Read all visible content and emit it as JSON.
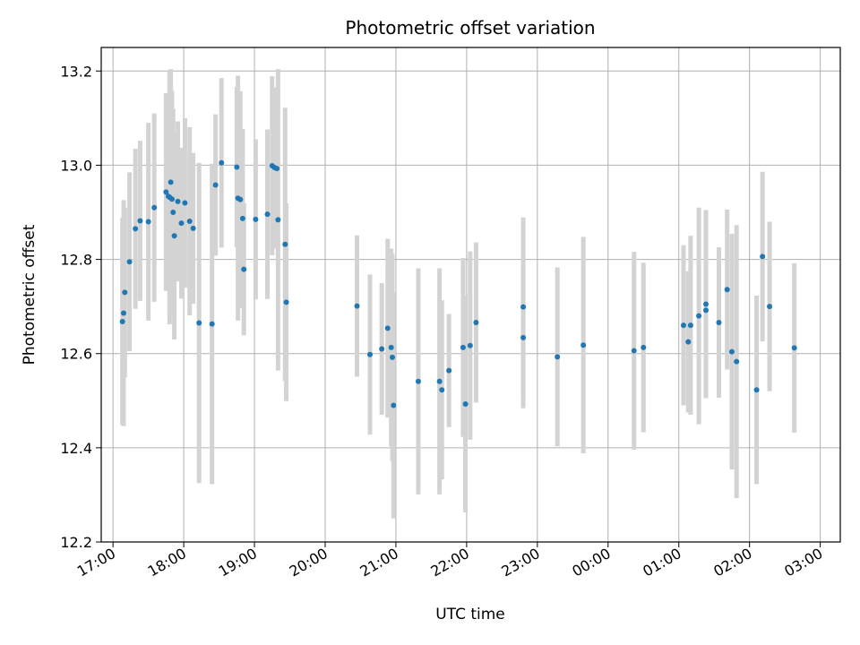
{
  "chart_data": {
    "type": "scatter",
    "title": "Photometric offset variation",
    "xlabel": "UTC time",
    "ylabel": "Photometric offset",
    "grid": true,
    "xlim": [
      "16:50",
      "03:17"
    ],
    "ylim": [
      12.2,
      13.25
    ],
    "xticks": [
      "17:00",
      "18:00",
      "19:00",
      "20:00",
      "21:00",
      "22:00",
      "23:00",
      "00:00",
      "01:00",
      "02:00",
      "03:00"
    ],
    "yticks": [
      "12.2",
      "12.4",
      "12.6",
      "12.8",
      "13.0",
      "13.2"
    ],
    "colors": {
      "marker": "#1f77b4",
      "errorbar": "#d3d3d3",
      "grid": "#b0b0b0"
    },
    "series": [
      {
        "x": [
          "17:08",
          "17:09",
          "17:10",
          "17:14",
          "17:19",
          "17:23",
          "17:30",
          "17:35",
          "17:45",
          "17:47",
          "17:48",
          "17:49",
          "17:50",
          "17:51",
          "17:52",
          "17:55",
          "17:58",
          "18:01",
          "18:05",
          "18:08",
          "18:13",
          "18:24",
          "18:27",
          "18:32",
          "18:45",
          "18:46",
          "18:48",
          "18:50",
          "18:51",
          "19:01",
          "19:11",
          "19:15",
          "19:17",
          "19:19",
          "19:20",
          "19:26",
          "19:27",
          "20:27",
          "20:38",
          "20:48",
          "20:53",
          "20:56",
          "20:57",
          "20:58",
          "21:19",
          "21:37",
          "21:39",
          "21:45",
          "21:57",
          "21:59",
          "22:03",
          "22:08",
          "22:48",
          "22:48",
          "23:17",
          "23:39",
          "24:22",
          "24:30",
          "25:04",
          "25:08",
          "25:10",
          "25:17",
          "25:23",
          "25:23",
          "25:34",
          "25:41",
          "25:45",
          "25:49",
          "26:06",
          "26:11",
          "26:17",
          "26:38"
        ],
        "y": [
          12.668,
          12.686,
          12.73,
          12.795,
          12.865,
          12.882,
          12.88,
          12.91,
          12.943,
          12.934,
          12.932,
          12.964,
          12.928,
          12.9,
          12.85,
          12.923,
          12.877,
          12.92,
          12.881,
          12.866,
          12.665,
          12.663,
          12.958,
          13.005,
          12.996,
          12.93,
          12.927,
          12.887,
          12.779,
          12.885,
          12.896,
          12.999,
          12.995,
          12.993,
          12.884,
          12.832,
          12.709,
          12.701,
          12.598,
          12.61,
          12.654,
          12.613,
          12.592,
          12.49,
          12.541,
          12.541,
          12.523,
          12.564,
          12.613,
          12.493,
          12.617,
          12.666,
          12.634,
          12.699,
          12.593,
          12.618,
          12.606,
          12.613,
          12.66,
          12.625,
          12.66,
          12.68,
          12.692,
          12.705,
          12.666,
          12.736,
          12.604,
          12.583,
          12.523,
          12.806,
          12.7,
          12.612
        ],
        "err": [
          0.22,
          0.24,
          0.18,
          0.19,
          0.17,
          0.17,
          0.21,
          0.2,
          0.21,
          0.17,
          0.27,
          0.24,
          0.23,
          0.22,
          0.22,
          0.17,
          0.16,
          0.18,
          0.2,
          0.16,
          0.34,
          0.34,
          0.15,
          0.18,
          0.17,
          0.26,
          0.23,
          0.19,
          0.14,
          0.17,
          0.18,
          0.19,
          0.17,
          0.17,
          0.32,
          0.29,
          0.21,
          0.15,
          0.17,
          0.14,
          0.19,
          0.21,
          0.22,
          0.24,
          0.24,
          0.24,
          0.19,
          0.12,
          0.19,
          0.23,
          0.2,
          0.17,
          0.15,
          0.19,
          0.19,
          0.23,
          0.21,
          0.18,
          0.17,
          0.15,
          0.19,
          0.23,
          0.17,
          0.2,
          0.16,
          0.17,
          0.25,
          0.29,
          0.2,
          0.18,
          0.18,
          0.18
        ]
      }
    ]
  }
}
